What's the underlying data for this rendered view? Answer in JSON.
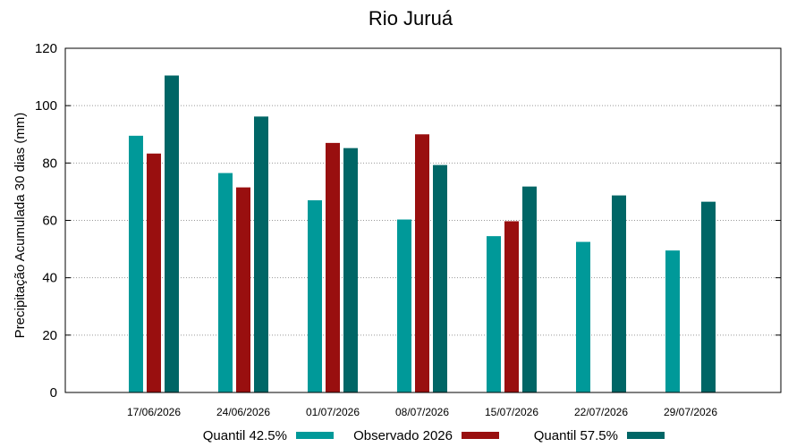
{
  "chart_data": {
    "type": "bar",
    "title": "Rio Juruá",
    "xlabel": "",
    "ylabel": "Precipitação Acumulada 30 dias (mm)",
    "ylim": [
      0,
      120
    ],
    "yticks": [
      0,
      20,
      40,
      60,
      80,
      100,
      120
    ],
    "grid": "horizontal-dotted",
    "legend_position": "bottom",
    "categories": [
      "17/06/2026",
      "24/06/2026",
      "01/07/2026",
      "08/07/2026",
      "15/07/2026",
      "22/07/2026",
      "29/07/2026"
    ],
    "series": [
      {
        "name": "Quantil 42.5%",
        "color": "#009999",
        "values": [
          89.5,
          76.5,
          67,
          60.3,
          54.5,
          52.5,
          49.5
        ]
      },
      {
        "name": "Observado 2026",
        "color": "#990f0f",
        "values": [
          83.3,
          71.5,
          87,
          90,
          59.7,
          null,
          null
        ]
      },
      {
        "name": "Quantil 57.5%",
        "color": "#006666",
        "values": [
          110.5,
          96.2,
          85.2,
          79.3,
          71.8,
          68.7,
          66.5
        ]
      }
    ]
  }
}
